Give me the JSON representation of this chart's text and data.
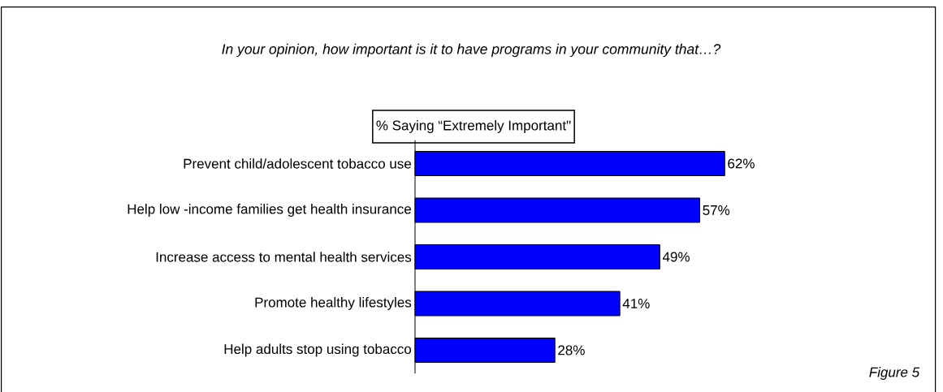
{
  "chart_data": {
    "type": "bar",
    "orientation": "horizontal",
    "title": "In your opinion, how important is it to have programs in your community that…?",
    "subtitle": "% Saying “Extremely Important\"",
    "categories": [
      "Prevent child/adolescent tobacco use",
      "Help low -income families get health insurance",
      "Increase access to mental health services",
      "Promote healthy lifestyles",
      "Help adults stop using tobacco"
    ],
    "values": [
      62,
      57,
      49,
      41,
      28
    ],
    "value_labels": [
      "62%",
      "57%",
      "49%",
      "41%",
      "28%"
    ],
    "color": "#0000ff",
    "annotations": [
      "Figure 5"
    ]
  }
}
